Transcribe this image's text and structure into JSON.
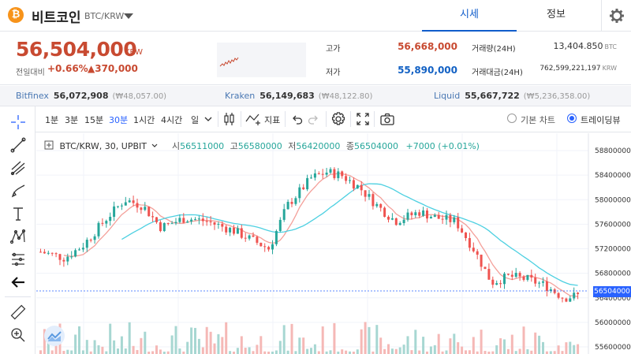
{
  "header": {
    "coin_symbol_glyph": "₿",
    "coin_name": "비트코인",
    "pair": "BTC/KRW",
    "tabs": [
      {
        "label": "시세"
      },
      {
        "label": "정보"
      }
    ],
    "settings_icon": "gear-icon"
  },
  "price": {
    "current": "56,504,000",
    "unit": "KRW",
    "prev_label": "전일대비",
    "change_pct": "+0.66%",
    "change_amt": "▲370,000",
    "high_label": "고가",
    "high": "56,668,000",
    "low_label": "저가",
    "low": "55,890,000",
    "volume_label": "거래량(24H)",
    "volume": "13,404.850",
    "volume_unit": "BTC",
    "amount_label": "거래대금(24H)",
    "amount": "762,599,221,197",
    "amount_unit": "KRW",
    "colors": {
      "up": "#c84a31",
      "down": "#1261c4"
    }
  },
  "exchanges": [
    {
      "name": "Bitfinex",
      "price": "56,072,908",
      "diff": "(₩48,057.00)"
    },
    {
      "name": "Kraken",
      "price": "56,149,683",
      "diff": "(₩48,122.80)"
    },
    {
      "name": "Liquid",
      "price": "55,667,722",
      "diff": "(₩5,236,358.00)"
    }
  ],
  "toolbar": {
    "intervals": [
      "1분",
      "3분",
      "15분",
      "30분",
      "1시간",
      "4시간",
      "일"
    ],
    "active_interval": "30분",
    "indicators_label": "지표",
    "basic_chart_label": "기본 차트",
    "tradingview_label": "트레이딩뷰"
  },
  "legend": {
    "symbol": "BTC/KRW, 30, UPBIT",
    "open_k": "시",
    "open": "56511000",
    "high_k": "고",
    "high": "56580000",
    "low_k": "저",
    "low": "56420000",
    "close_k": "종",
    "close": "56504000",
    "change": "+7000 (+0.01%)"
  },
  "chart_data": {
    "type": "candlestick",
    "y_ticks": [
      "58800000",
      "58400000",
      "58000000",
      "57600000",
      "57200000",
      "56800000",
      "56400000",
      "56000000",
      "55600000"
    ],
    "current_price_tag": "56504000",
    "colors": {
      "up": "#26a69a",
      "down": "#ef5350",
      "ma_short": "#f4a09a",
      "ma_long": "#4dd0e1"
    }
  }
}
